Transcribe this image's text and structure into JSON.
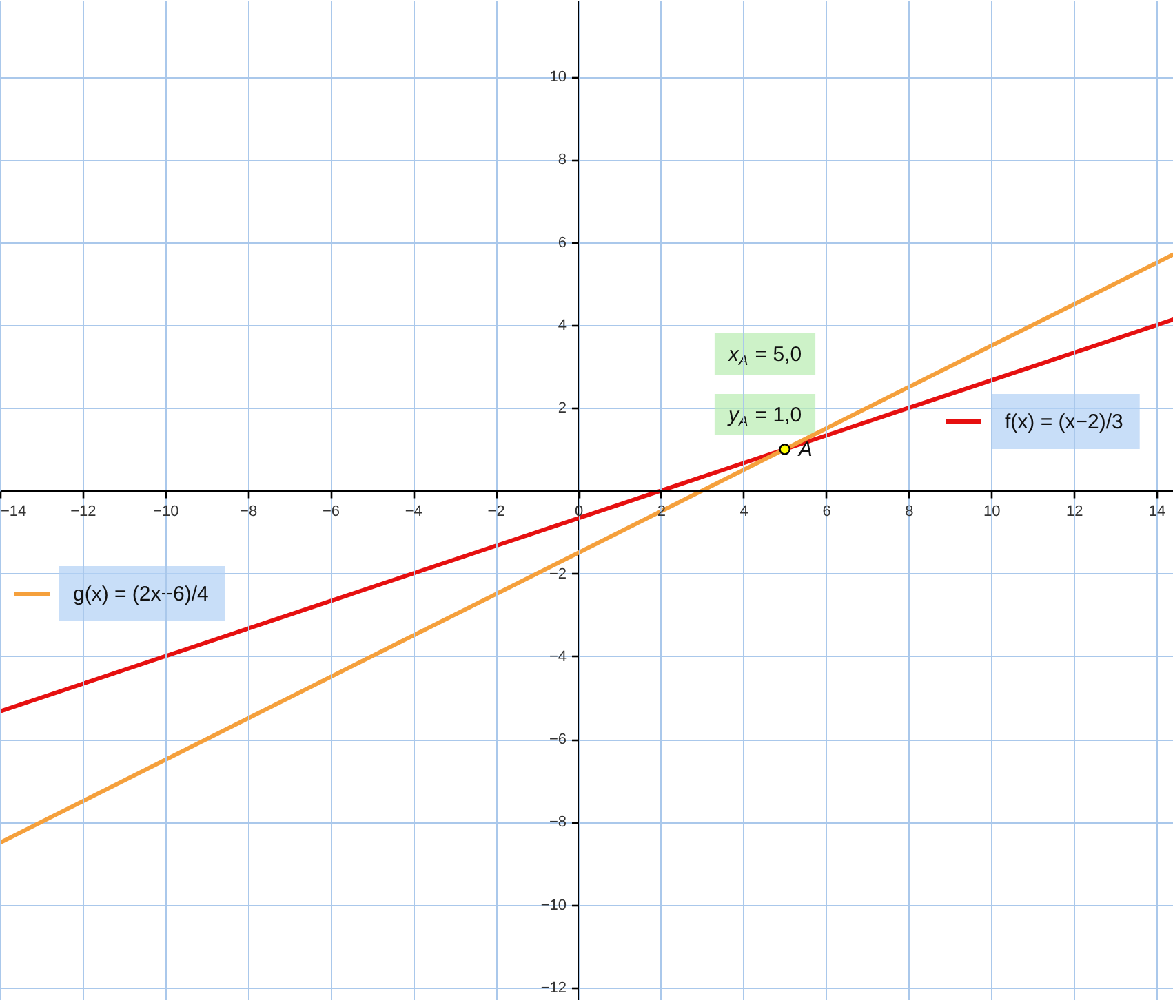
{
  "chart_data": {
    "type": "line",
    "xlim": [
      -14,
      14.4
    ],
    "xticks": [
      -14,
      -12,
      -10,
      -8,
      -6,
      -4,
      -2,
      0,
      2,
      4,
      6,
      8,
      10,
      12,
      14
    ],
    "ylim": [
      -12.3,
      11.85
    ],
    "yticks": [
      -12,
      -10,
      -8,
      -6,
      -4,
      -2,
      2,
      4,
      6,
      8,
      10
    ],
    "grid": true,
    "line_style": "solid",
    "legend": "right",
    "series": [
      {
        "name": "f(x) = (x−2)/3",
        "color": "#e61010",
        "x": [
          -14,
          14.4
        ],
        "values": [
          -5.33,
          4.13
        ]
      },
      {
        "name": "g(x) = (2x−6)/4",
        "color": "#f5a03c",
        "x": [
          -14,
          14.4
        ],
        "values": [
          -8.5,
          5.7
        ]
      },
      {
        "name": "A",
        "type": "scatter",
        "color": "#ffff00",
        "marker": "circle",
        "x": [
          5
        ],
        "values": [
          1
        ]
      }
    ],
    "annotations": [
      "x$_{A}$ = 5,0",
      "y$_{A}$ = 1,0"
    ]
  }
}
